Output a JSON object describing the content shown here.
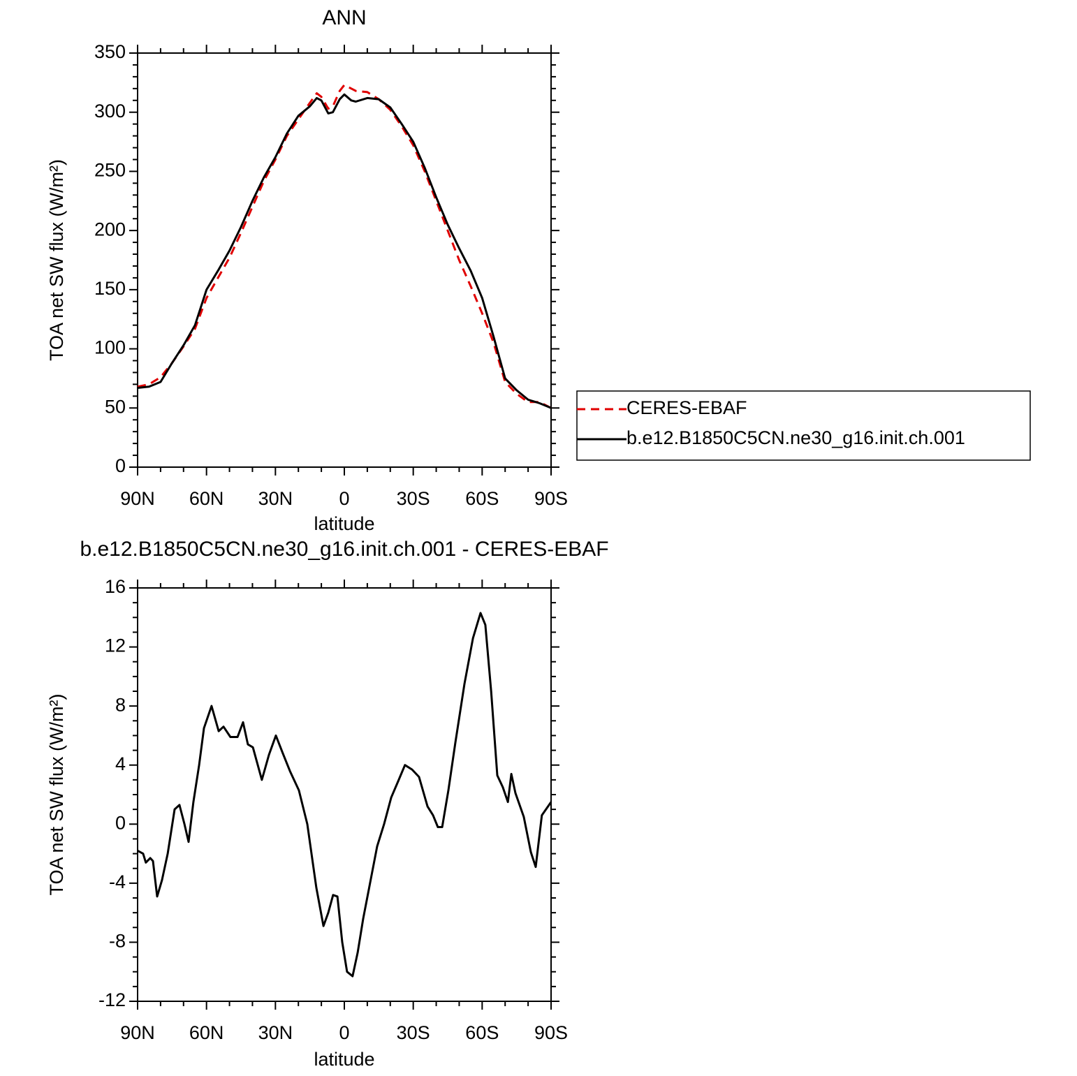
{
  "chart_data": [
    {
      "type": "line",
      "title": "ANN",
      "x_label": "latitude",
      "y_label": "TOA net SW flux (W/m²)",
      "x": [
        90,
        85,
        80,
        75,
        70,
        65,
        60,
        55,
        50,
        45,
        40,
        35,
        30,
        25,
        20,
        15,
        12,
        10,
        7,
        5,
        2,
        0,
        -3,
        -5,
        -10,
        -15,
        -20,
        -25,
        -30,
        -35,
        -40,
        -45,
        -50,
        -55,
        -60,
        -65,
        -70,
        -75,
        -80,
        -85,
        -90
      ],
      "series": [
        {
          "name": "CERES-EBAF",
          "color": "#e00000",
          "dashed": true,
          "values": [
            68,
            70,
            76,
            88,
            102,
            117,
            143,
            160,
            177,
            198,
            220,
            242,
            260,
            280,
            294,
            308,
            316,
            313,
            303,
            305,
            318,
            323,
            320,
            318,
            317,
            311,
            302,
            288,
            272,
            250,
            225,
            200,
            175,
            153,
            130,
            105,
            72,
            62,
            55,
            55,
            50
          ]
        },
        {
          "name": "b.e12.B1850C5CN.ne30_g16.init.ch.001",
          "color": "#000000",
          "dashed": false,
          "values": [
            67,
            68,
            72,
            88,
            103,
            120,
            150,
            166,
            183,
            203,
            225,
            245,
            262,
            282,
            297,
            305,
            312,
            310,
            299,
            300,
            311,
            315,
            310,
            309,
            312,
            311,
            304,
            290,
            275,
            253,
            228,
            205,
            185,
            166,
            143,
            110,
            75,
            65,
            57,
            54,
            50
          ]
        }
      ],
      "xlim": [
        90,
        -90
      ],
      "xticks": [
        {
          "value": 90,
          "label": "90N"
        },
        {
          "value": 60,
          "label": "60N"
        },
        {
          "value": 30,
          "label": "30N"
        },
        0,
        {
          "value": -30,
          "label": "30S"
        },
        {
          "value": -60,
          "label": "60S"
        },
        {
          "value": -90,
          "label": "90S"
        }
      ],
      "ylim": [
        0,
        350
      ],
      "yticks": [
        0,
        50,
        100,
        150,
        200,
        250,
        300,
        350
      ],
      "legend": "right"
    },
    {
      "type": "line",
      "title": "b.e12.B1850C5CN.ne30_g16.init.ch.001 - CERES-EBAF",
      "x_label": "latitude",
      "y_label": "TOA net SW flux (W/m²)",
      "x": [
        90,
        87.6,
        86.4,
        84.5,
        83.3,
        81.5,
        79.4,
        76.9,
        73.9,
        71.8,
        69.6,
        67.8,
        65.7,
        63.2,
        61.1,
        57.8,
        54.7,
        52.6,
        49.6,
        46.5,
        44.1,
        42,
        39.8,
        35.9,
        32.8,
        29.8,
        26.8,
        23.7,
        19.8,
        16.1,
        12.2,
        9.1,
        7,
        4.9,
        3,
        0.9,
        -1.2,
        -3.6,
        -5.8,
        -8.2,
        -11.2,
        -14.3,
        -17.3,
        -20.4,
        -23.4,
        -26.4,
        -29.5,
        -32.5,
        -36.2,
        -38.6,
        -40.7,
        -42.6,
        -45.3,
        -48.3,
        -52.3,
        -56,
        -59.3,
        -61.4,
        -63.9,
        -66.6,
        -69,
        -71.2,
        -72.7,
        -74.5,
        -78.1,
        -81.2,
        -83.3,
        -86,
        -90
      ],
      "values": [
        -1.8,
        -2.0,
        -2.6,
        -2.3,
        -2.5,
        -4.9,
        -3.8,
        -2,
        1,
        1.3,
        0,
        -1.2,
        1.5,
        4,
        6.5,
        8.0,
        6.3,
        6.6,
        5.9,
        5.9,
        6.9,
        5.4,
        5.2,
        3.0,
        4.7,
        6.0,
        4.8,
        3.6,
        2.3,
        0,
        -4.3,
        -6.9,
        -6,
        -4.8,
        -4.9,
        -8,
        -10,
        -10.3,
        -8.7,
        -6.4,
        -4,
        -1.5,
        0,
        1.8,
        2.9,
        4.0,
        3.7,
        3.2,
        1.2,
        0.6,
        -0.2,
        -0.2,
        2.3,
        5.5,
        9.5,
        12.6,
        14.3,
        13.5,
        9,
        3.3,
        2.5,
        1.5,
        3.4,
        2.1,
        0.5,
        -1.9,
        -2.9,
        0.6,
        1.5
      ],
      "color": "#000000",
      "xlim": [
        90,
        -90
      ],
      "xticks": [
        {
          "value": 90,
          "label": "90N"
        },
        {
          "value": 60,
          "label": "60N"
        },
        {
          "value": 30,
          "label": "30N"
        },
        0,
        {
          "value": -30,
          "label": "30S"
        },
        {
          "value": -60,
          "label": "60S"
        },
        {
          "value": -90,
          "label": "90S"
        }
      ],
      "ylim": [
        -12,
        16
      ],
      "yticks": [
        -12,
        -8,
        -4,
        0,
        4,
        8,
        12,
        16
      ]
    }
  ]
}
